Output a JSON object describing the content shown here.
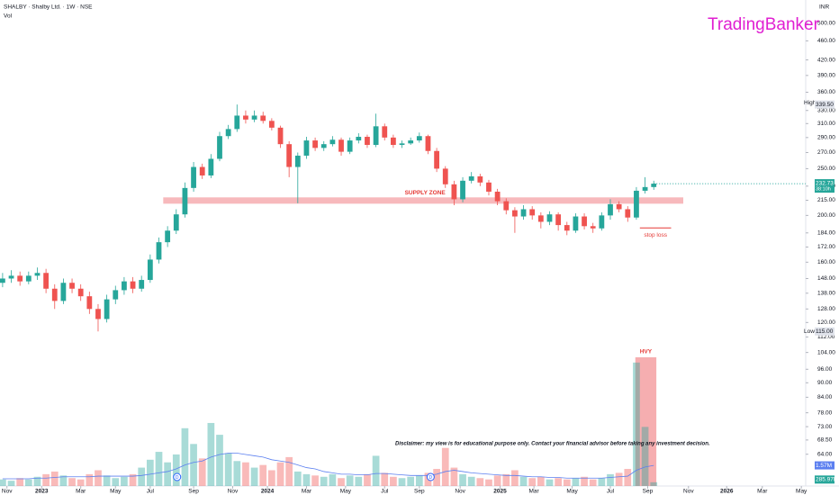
{
  "chart_data": {
    "type": "candlestick",
    "title": "SHALBY · Shalby Ltd. · 1W · NSE",
    "volume_title": "Vol",
    "currency": "INR",
    "watermark": "TradingBanker",
    "disclaimer": "Disclaimer: my view is for educational purpose only. Contact your financial advisor before taking any investment decision.",
    "log_scale": true,
    "up_color": "#26a69a",
    "down_color": "#ef5350",
    "xlim": [
      -0.3,
      92.5
    ],
    "xticks": [
      {
        "value": 0.5,
        "label": "Nov"
      },
      {
        "value": 4.5,
        "label": "2023"
      },
      {
        "value": 9,
        "label": "Mar"
      },
      {
        "value": 13,
        "label": "May"
      },
      {
        "value": 17,
        "label": "Jul"
      },
      {
        "value": 22,
        "label": "Sep"
      },
      {
        "value": 26.5,
        "label": "Nov"
      },
      {
        "value": 30.5,
        "label": "2024"
      },
      {
        "value": 35,
        "label": "Mar"
      },
      {
        "value": 39.5,
        "label": "May"
      },
      {
        "value": 44,
        "label": "Jul"
      },
      {
        "value": 48,
        "label": "Sep"
      },
      {
        "value": 52.7,
        "label": "Nov"
      },
      {
        "value": 57.3,
        "label": "2025"
      },
      {
        "value": 61.2,
        "label": "Mar"
      },
      {
        "value": 65.6,
        "label": "May"
      },
      {
        "value": 70,
        "label": "Jul"
      },
      {
        "value": 74.3,
        "label": "Sep"
      },
      {
        "value": 79,
        "label": "Nov"
      },
      {
        "value": 83.4,
        "label": "2026"
      },
      {
        "value": 87.5,
        "label": "Mar"
      },
      {
        "value": 92,
        "label": "May"
      }
    ],
    "ylim": [
      55,
      559
    ],
    "yticks": [
      {
        "value": 500,
        "label": "500.00"
      },
      {
        "value": 460,
        "label": "460.00"
      },
      {
        "value": 420,
        "label": "420.00"
      },
      {
        "value": 390,
        "label": "390.00"
      },
      {
        "value": 360,
        "label": "360.00"
      },
      {
        "value": 330,
        "label": "330.00"
      },
      {
        "value": 310,
        "label": "310.00"
      },
      {
        "value": 290,
        "label": "290.00"
      },
      {
        "value": 270,
        "label": "270.00"
      },
      {
        "value": 250,
        "label": "250.00"
      },
      {
        "value": 230,
        "label": "230.00"
      },
      {
        "value": 215,
        "label": "215.00"
      },
      {
        "value": 200,
        "label": "200.00"
      },
      {
        "value": 184,
        "label": "184.00"
      },
      {
        "value": 172,
        "label": "172.00"
      },
      {
        "value": 160,
        "label": "160.00"
      },
      {
        "value": 148,
        "label": "148.00"
      },
      {
        "value": 138,
        "label": "138.00"
      },
      {
        "value": 128,
        "label": "128.00"
      },
      {
        "value": 120,
        "label": "120.00"
      },
      {
        "value": 112,
        "label": "112.00"
      },
      {
        "value": 104,
        "label": "104.00"
      },
      {
        "value": 96,
        "label": "96.00"
      },
      {
        "value": 90,
        "label": "90.00"
      },
      {
        "value": 84,
        "label": "84.00"
      },
      {
        "value": 78,
        "label": "78.00"
      },
      {
        "value": 73,
        "label": "73.00"
      },
      {
        "value": 68.5,
        "label": "68.50"
      },
      {
        "value": 64,
        "label": "64.00"
      }
    ],
    "open": [
      145,
      148,
      150,
      146,
      150,
      152,
      141,
      133,
      145,
      141,
      136,
      128,
      122,
      134,
      140,
      146,
      141,
      147,
      162,
      176,
      186,
      201,
      228,
      252,
      242,
      262,
      292,
      302,
      322,
      316,
      322,
      314,
      304,
      281,
      252,
      266,
      286,
      276,
      281,
      287,
      271,
      286,
      291,
      280,
      306,
      290,
      280,
      282,
      286,
      292,
      272,
      250,
      232,
      216,
      236,
      241,
      234,
      224,
      214,
      205,
      199,
      206,
      200,
      194,
      201,
      191,
      186,
      199,
      190,
      188,
      200,
      211,
      206,
      198,
      225,
      229
    ],
    "high": [
      152,
      154,
      153,
      153,
      156,
      155,
      144,
      148,
      148,
      144,
      139,
      131,
      137,
      143,
      149,
      149,
      150,
      166,
      180,
      190,
      206,
      234,
      258,
      256,
      268,
      298,
      308,
      339.5,
      330,
      330,
      328,
      318,
      307,
      285,
      270,
      291,
      290,
      285,
      292,
      290,
      290,
      296,
      294,
      325,
      310,
      294,
      286,
      290,
      297,
      294,
      276,
      253,
      236,
      240,
      246,
      244,
      237,
      227,
      217,
      208,
      210,
      209,
      203,
      204,
      203,
      194,
      202,
      202,
      193,
      203,
      216,
      214,
      209,
      229,
      240,
      236
    ],
    "low": [
      142,
      145,
      143,
      144,
      147,
      138,
      128,
      131,
      138,
      133,
      125,
      115,
      120,
      131,
      137,
      138,
      139,
      145,
      159,
      172,
      183,
      198,
      224,
      238,
      239,
      259,
      288,
      298,
      310,
      312,
      310,
      300,
      276,
      240,
      212,
      262,
      272,
      272,
      278,
      266,
      268,
      282,
      276,
      277,
      286,
      276,
      276,
      280,
      283,
      268,
      246,
      228,
      210,
      213,
      233,
      230,
      220,
      210,
      201,
      184,
      196,
      196,
      188,
      191,
      186,
      182,
      184,
      187,
      184,
      186,
      196,
      203,
      194,
      196,
      222,
      226
    ],
    "close": [
      148,
      150,
      146,
      150,
      152,
      141,
      133,
      145,
      141,
      136,
      128,
      122,
      134,
      140,
      146,
      141,
      147,
      162,
      176,
      186,
      201,
      228,
      252,
      242,
      262,
      292,
      302,
      322,
      316,
      322,
      314,
      304,
      281,
      252,
      266,
      286,
      276,
      281,
      287,
      271,
      286,
      291,
      280,
      306,
      290,
      280,
      282,
      286,
      292,
      272,
      250,
      232,
      216,
      236,
      241,
      234,
      224,
      214,
      205,
      199,
      206,
      200,
      194,
      201,
      191,
      186,
      199,
      190,
      188,
      200,
      211,
      206,
      198,
      225,
      229,
      232.73
    ],
    "volume": [
      0.5,
      0.4,
      0.6,
      0.5,
      0.7,
      0.9,
      1.1,
      0.8,
      0.6,
      0.5,
      0.9,
      1.2,
      0.8,
      0.6,
      0.7,
      0.9,
      1.4,
      2.0,
      2.6,
      1.8,
      2.4,
      4.4,
      3.2,
      2.1,
      4.8,
      3.9,
      2.5,
      1.9,
      1.8,
      1.4,
      1.6,
      1.2,
      1.8,
      2.2,
      1.1,
      0.9,
      0.8,
      0.7,
      0.9,
      0.6,
      0.8,
      0.7,
      0.9,
      2.3,
      1.0,
      0.7,
      0.6,
      0.7,
      0.8,
      1.0,
      1.3,
      2.9,
      1.4,
      0.9,
      0.7,
      0.6,
      0.5,
      0.8,
      0.9,
      1.2,
      0.7,
      0.6,
      0.7,
      0.5,
      0.6,
      0.5,
      0.6,
      0.7,
      0.5,
      0.6,
      0.9,
      1.0,
      1.3,
      9.4,
      4.5,
      0.28597
    ],
    "volume_ma": [
      0.55,
      0.55,
      0.55,
      0.55,
      0.6,
      0.6,
      0.65,
      0.7,
      0.7,
      0.7,
      0.7,
      0.75,
      0.75,
      0.75,
      0.75,
      0.75,
      0.8,
      0.9,
      1.0,
      1.1,
      1.3,
      1.6,
      1.8,
      1.9,
      2.2,
      2.4,
      2.5,
      2.5,
      2.4,
      2.3,
      2.2,
      2.0,
      1.9,
      1.8,
      1.6,
      1.4,
      1.3,
      1.1,
      1.0,
      0.9,
      0.9,
      0.85,
      0.85,
      0.95,
      0.95,
      0.9,
      0.85,
      0.8,
      0.8,
      0.8,
      0.9,
      1.1,
      1.2,
      1.1,
      1.0,
      0.95,
      0.9,
      0.85,
      0.8,
      0.8,
      0.75,
      0.7,
      0.7,
      0.65,
      0.65,
      0.6,
      0.6,
      0.6,
      0.6,
      0.6,
      0.65,
      0.7,
      0.75,
      1.2,
      1.45,
      1.57
    ],
    "volume_ma_color": "#5b7ff0",
    "volume_lim": [
      0,
      9.8
    ],
    "volume_ma_label": {
      "value": 1.57,
      "label": "1.57M"
    },
    "last_volume_label": {
      "value": 0.28597,
      "label": "285.97K"
    },
    "countdown": "38:10h",
    "high_marker": {
      "text": "High",
      "value": 339.5,
      "label": "339.50"
    },
    "low_marker": {
      "text": "Low",
      "value": 115,
      "label": "115.00"
    },
    "supply_zone": {
      "label": "SUPPLY ZONE",
      "low": 211.5,
      "high": 218,
      "x_range": [
        18.5,
        78.4
      ],
      "color": "#f28b8f"
    },
    "stop_loss": {
      "label": "stop loss",
      "value": 188.4,
      "x_range": [
        73.4,
        77
      ],
      "color": "#e53935"
    },
    "volume_highlight": {
      "label": "HVY",
      "x_range": [
        73.5,
        75.3
      ],
      "color": "#f28b8f"
    },
    "events": [
      {
        "x": 20.1,
        "label": "D"
      },
      {
        "x": 49.3,
        "label": "D"
      }
    ]
  }
}
